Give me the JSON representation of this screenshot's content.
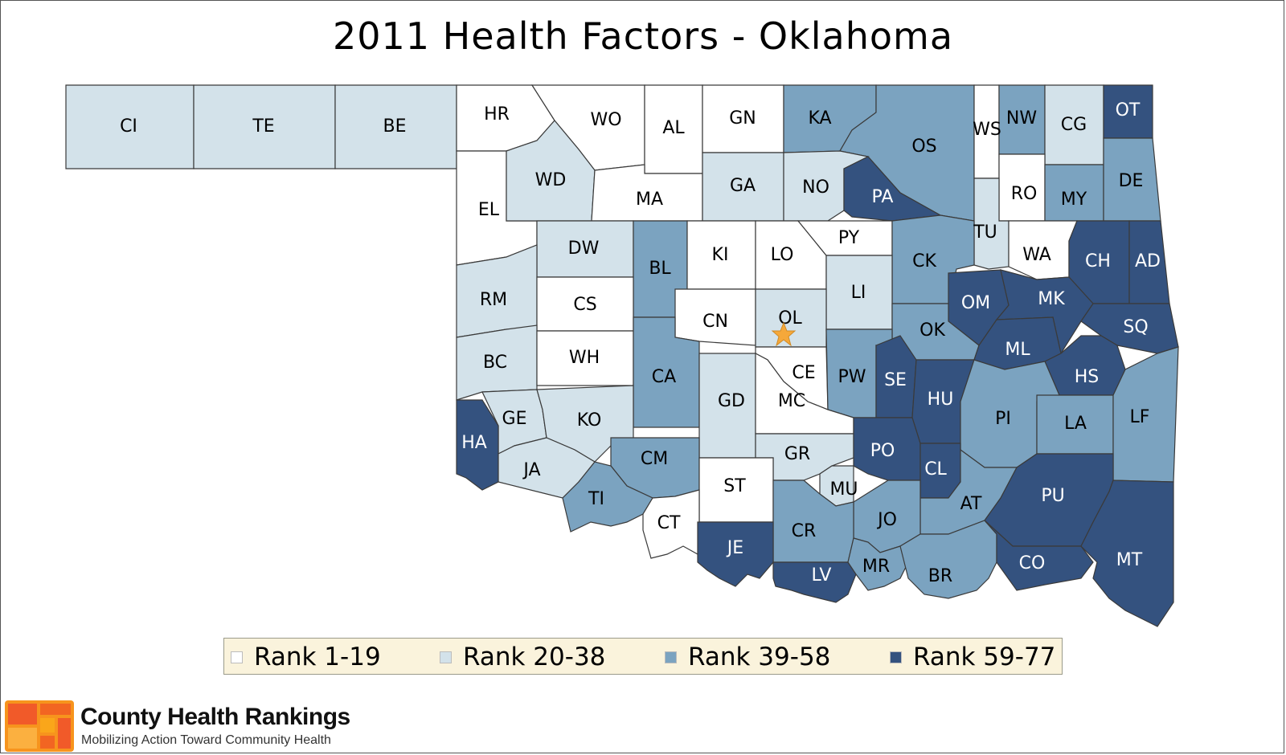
{
  "title": "2011 Health Factors - Oklahoma",
  "colors": {
    "rank_1_19": "#ffffff",
    "rank_20_38": "#d3e2ea",
    "rank_39_58": "#7ba3c0",
    "rank_59_77": "#34527f",
    "star": "#f5a83a",
    "legend_bg": "#faf3dc"
  },
  "legend": [
    {
      "label": "Rank 1-19",
      "tier": "rank_1_19"
    },
    {
      "label": "Rank 20-38",
      "tier": "rank_20_38"
    },
    {
      "label": "Rank 39-58",
      "tier": "rank_39_58"
    },
    {
      "label": "Rank 59-77",
      "tier": "rank_59_77"
    }
  ],
  "counties": [
    {
      "abbr": "CI",
      "tier": "rank_20_38"
    },
    {
      "abbr": "TE",
      "tier": "rank_20_38"
    },
    {
      "abbr": "BE",
      "tier": "rank_20_38"
    },
    {
      "abbr": "HR",
      "tier": "rank_1_19"
    },
    {
      "abbr": "WO",
      "tier": "rank_1_19"
    },
    {
      "abbr": "AL",
      "tier": "rank_1_19"
    },
    {
      "abbr": "GN",
      "tier": "rank_1_19"
    },
    {
      "abbr": "KA",
      "tier": "rank_39_58"
    },
    {
      "abbr": "OS",
      "tier": "rank_39_58"
    },
    {
      "abbr": "WS",
      "tier": "rank_1_19"
    },
    {
      "abbr": "NW",
      "tier": "rank_39_58"
    },
    {
      "abbr": "CG",
      "tier": "rank_20_38"
    },
    {
      "abbr": "OT",
      "tier": "rank_59_77"
    },
    {
      "abbr": "EL",
      "tier": "rank_1_19"
    },
    {
      "abbr": "WD",
      "tier": "rank_20_38"
    },
    {
      "abbr": "MA",
      "tier": "rank_1_19"
    },
    {
      "abbr": "GA",
      "tier": "rank_20_38"
    },
    {
      "abbr": "NO",
      "tier": "rank_20_38"
    },
    {
      "abbr": "PA",
      "tier": "rank_59_77"
    },
    {
      "abbr": "RO",
      "tier": "rank_1_19"
    },
    {
      "abbr": "MY",
      "tier": "rank_39_58"
    },
    {
      "abbr": "DE",
      "tier": "rank_39_58"
    },
    {
      "abbr": "DW",
      "tier": "rank_20_38"
    },
    {
      "abbr": "BL",
      "tier": "rank_39_58"
    },
    {
      "abbr": "KI",
      "tier": "rank_1_19"
    },
    {
      "abbr": "LO",
      "tier": "rank_1_19"
    },
    {
      "abbr": "PY",
      "tier": "rank_1_19"
    },
    {
      "abbr": "TU",
      "tier": "rank_20_38"
    },
    {
      "abbr": "WA",
      "tier": "rank_1_19"
    },
    {
      "abbr": "CH",
      "tier": "rank_59_77"
    },
    {
      "abbr": "AD",
      "tier": "rank_59_77"
    },
    {
      "abbr": "RM",
      "tier": "rank_20_38"
    },
    {
      "abbr": "CS",
      "tier": "rank_1_19"
    },
    {
      "abbr": "CK",
      "tier": "rank_39_58"
    },
    {
      "abbr": "LI",
      "tier": "rank_20_38"
    },
    {
      "abbr": "CN",
      "tier": "rank_1_19"
    },
    {
      "abbr": "OL",
      "tier": "rank_20_38"
    },
    {
      "abbr": "OM",
      "tier": "rank_59_77"
    },
    {
      "abbr": "MK",
      "tier": "rank_59_77"
    },
    {
      "abbr": "SQ",
      "tier": "rank_59_77"
    },
    {
      "abbr": "BC",
      "tier": "rank_20_38"
    },
    {
      "abbr": "WH",
      "tier": "rank_1_19"
    },
    {
      "abbr": "OK",
      "tier": "rank_39_58"
    },
    {
      "abbr": "ML",
      "tier": "rank_59_77"
    },
    {
      "abbr": "HS",
      "tier": "rank_59_77"
    },
    {
      "abbr": "CA",
      "tier": "rank_39_58"
    },
    {
      "abbr": "CE",
      "tier": "rank_1_19"
    },
    {
      "abbr": "PW",
      "tier": "rank_39_58"
    },
    {
      "abbr": "SE",
      "tier": "rank_59_77"
    },
    {
      "abbr": "HU",
      "tier": "rank_59_77"
    },
    {
      "abbr": "GE",
      "tier": "rank_20_38"
    },
    {
      "abbr": "KO",
      "tier": "rank_20_38"
    },
    {
      "abbr": "GD",
      "tier": "rank_20_38"
    },
    {
      "abbr": "MC",
      "tier": "rank_1_19"
    },
    {
      "abbr": "PI",
      "tier": "rank_39_58"
    },
    {
      "abbr": "LA",
      "tier": "rank_39_58"
    },
    {
      "abbr": "LF",
      "tier": "rank_39_58"
    },
    {
      "abbr": "HA",
      "tier": "rank_59_77"
    },
    {
      "abbr": "JA",
      "tier": "rank_20_38"
    },
    {
      "abbr": "CM",
      "tier": "rank_39_58"
    },
    {
      "abbr": "GR",
      "tier": "rank_20_38"
    },
    {
      "abbr": "PO",
      "tier": "rank_59_77"
    },
    {
      "abbr": "CL",
      "tier": "rank_59_77"
    },
    {
      "abbr": "TI",
      "tier": "rank_39_58"
    },
    {
      "abbr": "ST",
      "tier": "rank_1_19"
    },
    {
      "abbr": "MU",
      "tier": "rank_20_38"
    },
    {
      "abbr": "AT",
      "tier": "rank_39_58"
    },
    {
      "abbr": "PU",
      "tier": "rank_59_77"
    },
    {
      "abbr": "CT",
      "tier": "rank_1_19"
    },
    {
      "abbr": "JO",
      "tier": "rank_39_58"
    },
    {
      "abbr": "CR",
      "tier": "rank_39_58"
    },
    {
      "abbr": "JE",
      "tier": "rank_59_77"
    },
    {
      "abbr": "LV",
      "tier": "rank_59_77"
    },
    {
      "abbr": "MR",
      "tier": "rank_39_58"
    },
    {
      "abbr": "BR",
      "tier": "rank_39_58"
    },
    {
      "abbr": "CO",
      "tier": "rank_59_77"
    },
    {
      "abbr": "MT",
      "tier": "rank_59_77"
    }
  ],
  "footer": {
    "brand": "County Health Rankings",
    "tagline": "Mobilizing Action Toward Community Health"
  }
}
